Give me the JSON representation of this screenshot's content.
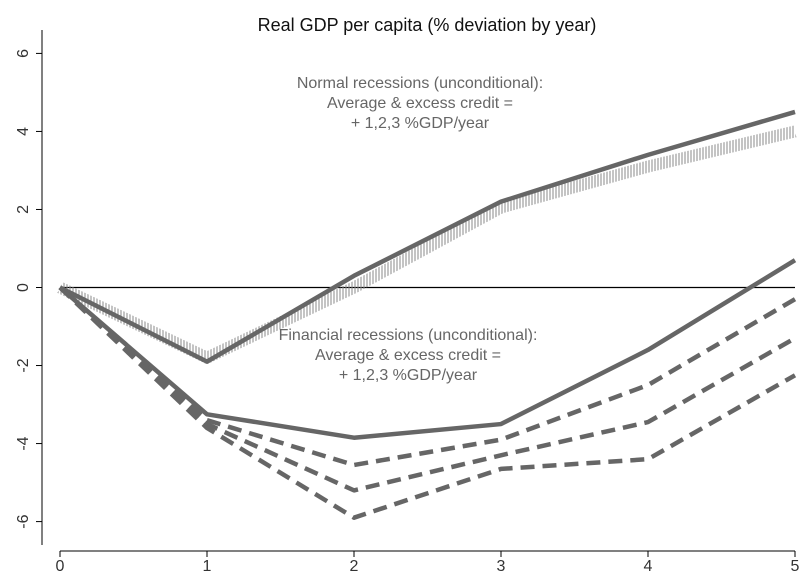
{
  "chart_data": {
    "type": "line",
    "title": "Real GDP per capita (% deviation by year)",
    "x": [
      0,
      1,
      2,
      3,
      4,
      5
    ],
    "xlim": [
      0,
      5
    ],
    "xticks": [
      0,
      1,
      2,
      3,
      4,
      5
    ],
    "ylim": [
      -6.6,
      6.6
    ],
    "yticks": [
      -6,
      -4,
      -2,
      0,
      2,
      4,
      6
    ],
    "series": [
      {
        "color": "#999999",
        "style": "hatch",
        "values": [
          0,
          -1.8,
          0.0,
          2.05,
          3.1,
          4.0
        ]
      },
      {
        "color": "#666666",
        "style": "solid",
        "values": [
          0,
          -1.9,
          0.3,
          2.2,
          3.4,
          4.5
        ]
      },
      {
        "color": "#666666",
        "style": "solid",
        "values": [
          0,
          -3.25,
          -3.85,
          -3.5,
          -1.6,
          0.7
        ]
      },
      {
        "color": "#666666",
        "style": "dash",
        "values": [
          0,
          -3.4,
          -4.55,
          -3.9,
          -2.5,
          -0.3
        ]
      },
      {
        "color": "#666666",
        "style": "dash",
        "values": [
          0,
          -3.5,
          -5.2,
          -4.3,
          -3.45,
          -1.3
        ]
      },
      {
        "color": "#666666",
        "style": "dash",
        "values": [
          0,
          -3.6,
          -5.9,
          -4.65,
          -4.4,
          -2.25
        ]
      }
    ],
    "annotations": [
      {
        "lines": [
          "Normal recessions (unconditional):",
          "Average & excess credit =",
          "+ 1,2,3 %GDP/year"
        ]
      },
      {
        "lines": [
          "Financial recessions (unconditional):",
          "Average & excess credit =",
          "+ 1,2,3 %GDP/year"
        ]
      }
    ],
    "zero_line": true
  }
}
